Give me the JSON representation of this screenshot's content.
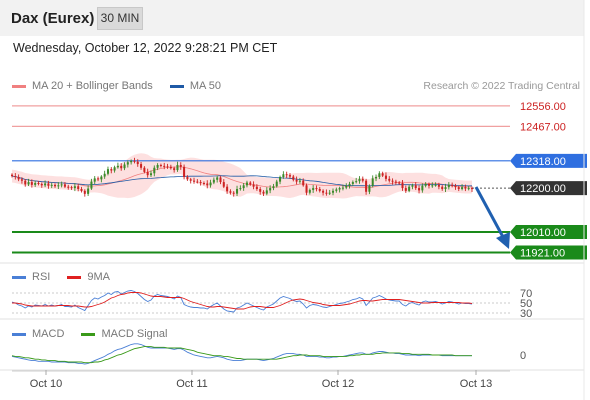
{
  "header": {
    "title": "Dax (Eurex)",
    "timeframe": "30 MIN"
  },
  "datetime": "Wednesday, October 12, 2022 9:28:21 PM CET",
  "legend_main": [
    {
      "label": "MA 20 + Bollinger Bands",
      "color": "#f08080"
    },
    {
      "label": "MA 50",
      "color": "#1f5aa6"
    }
  ],
  "attribution": "Research © 2022 Trading Central",
  "legend_rsi": [
    {
      "label": "RSI",
      "color": "#4a7fd6"
    },
    {
      "label": "9MA",
      "color": "#e02020"
    }
  ],
  "legend_macd": [
    {
      "label": "MACD",
      "color": "#4a7fd6"
    },
    {
      "label": "MACD Signal",
      "color": "#3a9a1a"
    }
  ],
  "colors": {
    "up": "#3a8a2a",
    "down": "#cc2222",
    "bb_fill": "#fde0e0",
    "resistance": "#f0a0a0",
    "pivot": "#2f6fe0",
    "support": "#1a8a1a",
    "last": "#333333"
  },
  "chart_data": {
    "type": "candlestick",
    "x_ticks": [
      "Oct 10",
      "Oct 11",
      "Oct 12",
      "Oct 13"
    ],
    "price_range": [
      11880,
      12590
    ],
    "levels": [
      {
        "value": 12556.0,
        "label": "12556.00",
        "kind": "resistance"
      },
      {
        "value": 12467.0,
        "label": "12467.00",
        "kind": "resistance"
      },
      {
        "value": 12318.0,
        "label": "12318.00",
        "kind": "pivot"
      },
      {
        "value": 12200.0,
        "label": "12200.00",
        "kind": "last"
      },
      {
        "value": 12010.0,
        "label": "12010.00",
        "kind": "support"
      },
      {
        "value": 11921.0,
        "label": "11921.00",
        "kind": "support"
      }
    ],
    "closes": [
      12252,
      12248,
      12238,
      12232,
      12216,
      12226,
      12214,
      12222,
      12218,
      12212,
      12220,
      12210,
      12214,
      12208,
      12212,
      12216,
      12206,
      12204,
      12200,
      12208,
      12196,
      12188,
      12175,
      12198,
      12228,
      12242,
      12238,
      12250,
      12262,
      12282,
      12276,
      12290,
      12296,
      12286,
      12302,
      12312,
      12318,
      12314,
      12304,
      12288,
      12270,
      12256,
      12264,
      12288,
      12300,
      12296,
      12294,
      12292,
      12286,
      12278,
      12300,
      12292,
      12248,
      12238,
      12232,
      12228,
      12226,
      12222,
      12220,
      12212,
      12224,
      12236,
      12246,
      12226,
      12206,
      12186,
      12180,
      12176,
      12196,
      12200,
      12212,
      12224,
      12216,
      12206,
      12196,
      12184,
      12176,
      12190,
      12200,
      12208,
      12228,
      12248,
      12260,
      12256,
      12250,
      12236,
      12228,
      12232,
      12212,
      12180,
      12192,
      12200,
      12196,
      12188,
      12180,
      12176,
      12180,
      12188,
      12194,
      12200,
      12202,
      12210,
      12218,
      12226,
      12230,
      12240,
      12232,
      12184,
      12210,
      12242,
      12248,
      12264,
      12254,
      12240,
      12232,
      12228,
      12224,
      12222,
      12200,
      12188,
      12206,
      12212,
      12200,
      12190,
      12210,
      12218,
      12210,
      12212,
      12214,
      12206,
      12196,
      12204,
      12214,
      12210,
      12204,
      12196,
      12204,
      12198,
      12200,
      12196
    ],
    "rsi_axis": [
      70,
      50,
      30
    ],
    "rsi": [
      52,
      50,
      46,
      44,
      40,
      44,
      42,
      46,
      45,
      44,
      47,
      44,
      46,
      44,
      45,
      47,
      43,
      43,
      42,
      46,
      41,
      38,
      35,
      45,
      55,
      60,
      58,
      62,
      65,
      70,
      67,
      72,
      73,
      68,
      71,
      74,
      75,
      73,
      69,
      63,
      57,
      53,
      56,
      64,
      67,
      65,
      64,
      63,
      61,
      58,
      64,
      61,
      47,
      44,
      42,
      41,
      41,
      40,
      40,
      38,
      43,
      47,
      50,
      44,
      38,
      34,
      33,
      32,
      40,
      42,
      46,
      50,
      47,
      44,
      41,
      38,
      36,
      42,
      45,
      48,
      54,
      60,
      63,
      61,
      59,
      55,
      53,
      54,
      48,
      40,
      45,
      47,
      46,
      44,
      42,
      41,
      43,
      45,
      47,
      49,
      50,
      52,
      54,
      57,
      58,
      61,
      58,
      45,
      52,
      60,
      62,
      65,
      62,
      58,
      56,
      55,
      54,
      54,
      47,
      44,
      49,
      51,
      48,
      46,
      52,
      54,
      52,
      52,
      53,
      51,
      48,
      50,
      53,
      52,
      50,
      48,
      50,
      49,
      49,
      48
    ],
    "rsi_ma": [
      50,
      50,
      49,
      48,
      46,
      45,
      44,
      44,
      44,
      44,
      44,
      44,
      44,
      44,
      45,
      45,
      45,
      45,
      44,
      44,
      44,
      43,
      42,
      42,
      43,
      45,
      47,
      49,
      52,
      56,
      60,
      62,
      65,
      67,
      68,
      70,
      71,
      71,
      71,
      70,
      68,
      66,
      64,
      63,
      63,
      63,
      62,
      61,
      61,
      61,
      61,
      61,
      59,
      56,
      53,
      51,
      49,
      47,
      45,
      43,
      42,
      42,
      43,
      43,
      42,
      41,
      40,
      39,
      38,
      38,
      38,
      40,
      42,
      43,
      43,
      43,
      42,
      41,
      41,
      41,
      43,
      45,
      48,
      51,
      54,
      56,
      57,
      58,
      57,
      55,
      53,
      51,
      50,
      49,
      47,
      46,
      45,
      45,
      45,
      45,
      46,
      47,
      48,
      50,
      52,
      54,
      55,
      55,
      54,
      54,
      55,
      56,
      57,
      57,
      57,
      57,
      57,
      57,
      56,
      55,
      54,
      53,
      52,
      51,
      50,
      50,
      50,
      51,
      51,
      51,
      51,
      51,
      51,
      51,
      51,
      51,
      50,
      50,
      50,
      49
    ],
    "macd": [
      -2,
      -3,
      -4,
      -5,
      -6,
      -7,
      -8,
      -8,
      -9,
      -9,
      -9,
      -9,
      -10,
      -10,
      -10,
      -10,
      -10,
      -11,
      -11,
      -11,
      -12,
      -12,
      -13,
      -12,
      -10,
      -8,
      -6,
      -4,
      -2,
      1,
      3,
      6,
      8,
      9,
      11,
      13,
      15,
      16,
      16,
      15,
      13,
      11,
      10,
      10,
      10,
      10,
      10,
      10,
      9,
      8,
      9,
      9,
      7,
      4,
      2,
      0,
      -1,
      -2,
      -3,
      -4,
      -4,
      -3,
      -2,
      -3,
      -4,
      -6,
      -7,
      -8,
      -8,
      -8,
      -7,
      -6,
      -6,
      -6,
      -6,
      -7,
      -8,
      -7,
      -6,
      -5,
      -3,
      -1,
      1,
      2,
      2,
      2,
      1,
      1,
      0,
      -2,
      -2,
      -2,
      -2,
      -3,
      -3,
      -4,
      -4,
      -3,
      -3,
      -2,
      -2,
      -1,
      0,
      1,
      2,
      3,
      3,
      1,
      1,
      3,
      4,
      5,
      5,
      4,
      3,
      3,
      2,
      2,
      1,
      0,
      0,
      0,
      0,
      -1,
      0,
      0,
      0,
      0,
      0,
      0,
      -1,
      -1,
      -1,
      -1,
      -1,
      -1,
      -1,
      -1,
      -1,
      -1
    ],
    "macd_signal": [
      -1,
      -2,
      -2,
      -3,
      -4,
      -4,
      -5,
      -6,
      -6,
      -7,
      -7,
      -8,
      -8,
      -8,
      -9,
      -9,
      -9,
      -10,
      -10,
      -10,
      -10,
      -10,
      -11,
      -11,
      -11,
      -10,
      -10,
      -9,
      -7,
      -6,
      -4,
      -2,
      0,
      1,
      3,
      5,
      7,
      9,
      10,
      11,
      12,
      12,
      12,
      11,
      11,
      11,
      11,
      10,
      10,
      10,
      10,
      10,
      9,
      8,
      7,
      6,
      4,
      3,
      2,
      1,
      0,
      -1,
      -1,
      -1,
      -2,
      -2,
      -3,
      -4,
      -5,
      -5,
      -6,
      -6,
      -6,
      -6,
      -6,
      -6,
      -6,
      -6,
      -6,
      -6,
      -6,
      -5,
      -4,
      -3,
      -2,
      -1,
      -1,
      0,
      0,
      0,
      -1,
      -1,
      -1,
      -1,
      -2,
      -2,
      -2,
      -2,
      -2,
      -2,
      -2,
      -2,
      -1,
      -1,
      0,
      0,
      1,
      1,
      1,
      1,
      2,
      2,
      3,
      3,
      3,
      3,
      3,
      3,
      2,
      2,
      2,
      1,
      1,
      1,
      1,
      1,
      1,
      0,
      0,
      0,
      0,
      0,
      0,
      0,
      -1,
      -1,
      -1,
      -1,
      -1,
      -1
    ],
    "macd_axis": [
      0
    ]
  }
}
